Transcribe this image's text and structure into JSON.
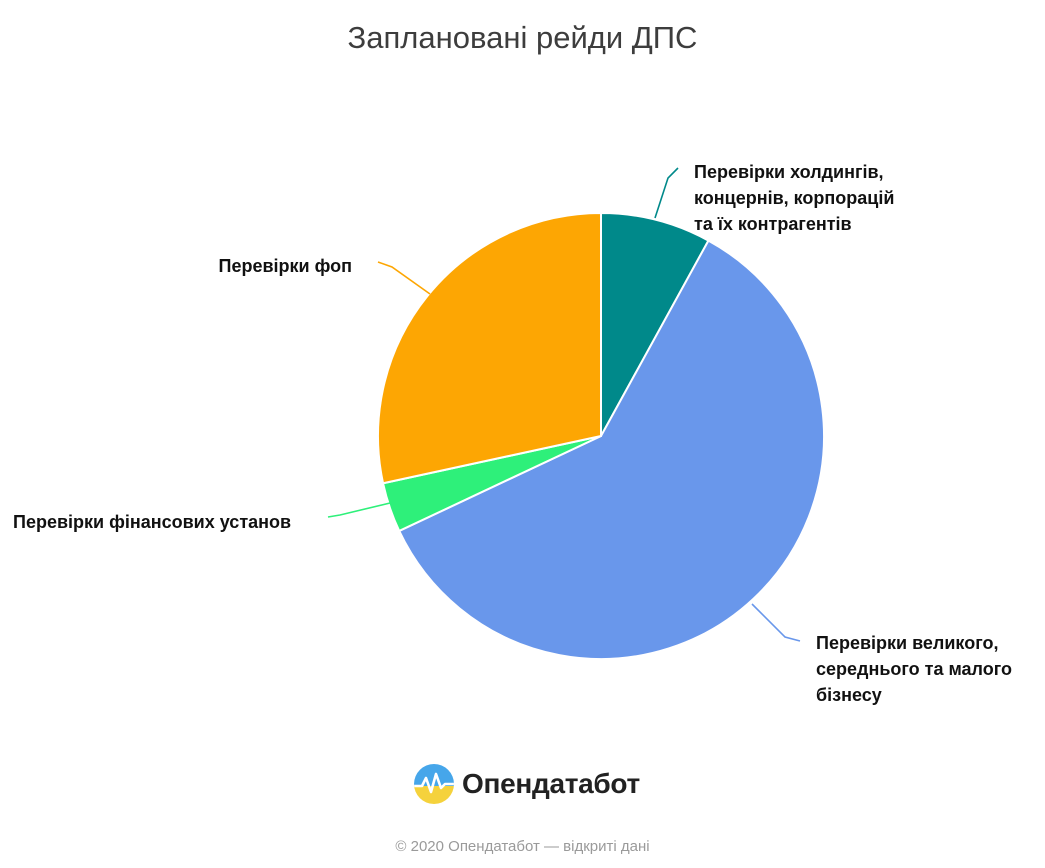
{
  "chart_data": {
    "type": "pie",
    "title": "Заплановані рейди ДПС",
    "start_angle_deg": 0,
    "direction": "clockwise",
    "slices": [
      {
        "name": "Перевірки холдингів, концернів, корпорацій та їх контрагентів",
        "label_lines": [
          "Перевірки холдингів,",
          "концернів, корпорацій",
          "та їх контрагентів"
        ],
        "value": 8,
        "color": "#00898a"
      },
      {
        "name": "Перевірки великого, середнього та малого бізнесу",
        "label_lines": [
          "Перевірки великого,",
          "середнього та малого",
          "бізнесу"
        ],
        "value": 60,
        "color": "#6997eb"
      },
      {
        "name": "Перевірки фінансових установ",
        "label_lines": [
          "Перевірки фінансових установ"
        ],
        "value": 3.6,
        "color": "#2ef07a"
      },
      {
        "name": "Перевірки фоп",
        "label_lines": [
          "Перевірки фоп"
        ],
        "value": 28.4,
        "color": "#fda603"
      }
    ]
  },
  "brand": {
    "name": "Опендатабот",
    "logo_icon": "opendatabot-logo-icon"
  },
  "footer": {
    "copyright": "© 2020 Опендатабот — відкриті дані"
  }
}
